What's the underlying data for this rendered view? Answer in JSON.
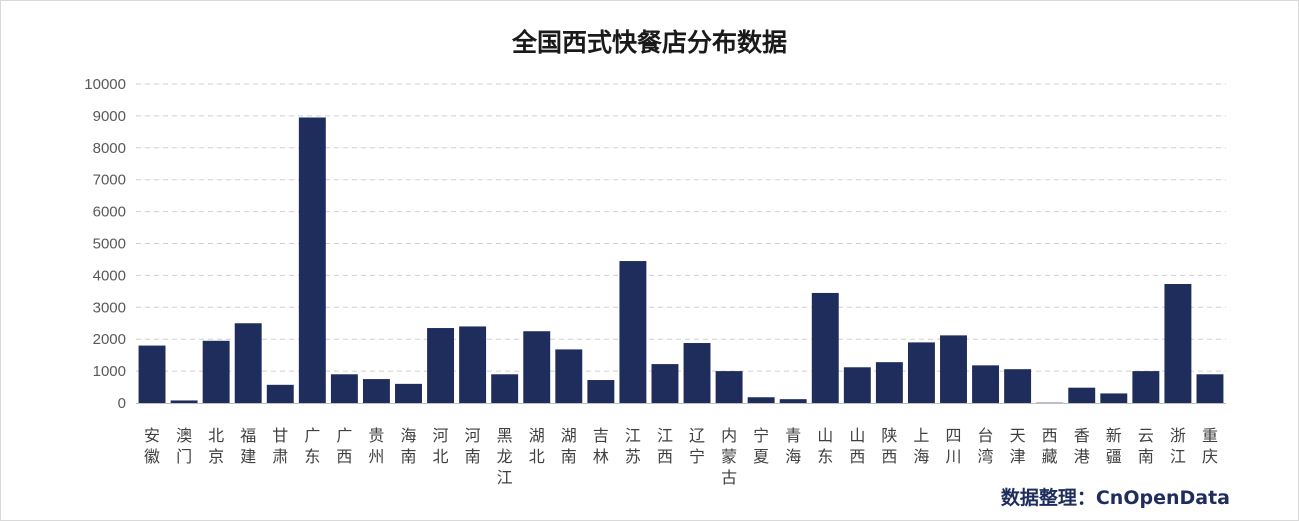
{
  "chart_data": {
    "type": "bar",
    "title": "全国西式快餐店分布数据",
    "xlabel": "",
    "ylabel": "",
    "ylim": [
      0,
      10000
    ],
    "yticks": [
      0,
      1000,
      2000,
      3000,
      4000,
      5000,
      6000,
      7000,
      8000,
      9000,
      10000
    ],
    "grid": true,
    "bar_color": "#1f2d5c",
    "categories": [
      "安徽",
      "澳门",
      "北京",
      "福建",
      "甘肃",
      "广东",
      "广西",
      "贵州",
      "海南",
      "河北",
      "河南",
      "黑龙江",
      "湖北",
      "湖南",
      "吉林",
      "江苏",
      "江西",
      "辽宁",
      "内蒙古",
      "宁夏",
      "青海",
      "山东",
      "山西",
      "陕西",
      "上海",
      "四川",
      "台湾",
      "天津",
      "西藏",
      "香港",
      "新疆",
      "云南",
      "浙江",
      "重庆"
    ],
    "values": [
      1800,
      80,
      1950,
      2500,
      570,
      8950,
      900,
      750,
      600,
      2350,
      2400,
      900,
      2250,
      1680,
      720,
      4450,
      1220,
      1880,
      1000,
      180,
      120,
      3450,
      1120,
      1280,
      1900,
      2120,
      1180,
      1060,
      10,
      480,
      300,
      1000,
      3730,
      900
    ]
  },
  "credit": "数据整理：CnOpenData"
}
